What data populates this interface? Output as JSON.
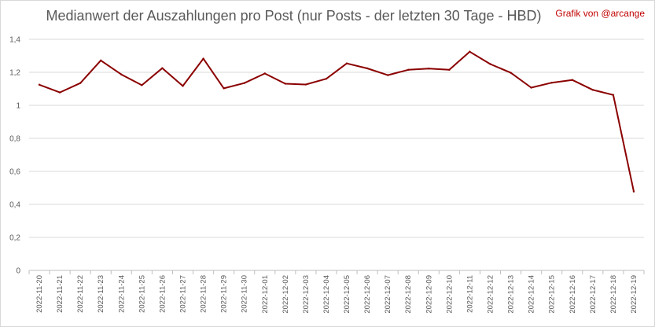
{
  "title": "Medianwert der Auszahlungen pro Post (nur Posts - der letzten 30 Tage - HBD)",
  "credit": "Grafik von @arcange",
  "chart_data": {
    "type": "line",
    "title": "Medianwert der Auszahlungen pro Post (nur Posts - der letzten 30 Tage - HBD)",
    "xlabel": "",
    "ylabel": "",
    "categories": [
      "2022-11-20",
      "2022-11-21",
      "2022-11-22",
      "2022-11-23",
      "2022-11-24",
      "2022-11-25",
      "2022-11-26",
      "2022-11-27",
      "2022-11-28",
      "2022-11-29",
      "2022-11-30",
      "2022-12-01",
      "2022-12-02",
      "2022-12-03",
      "2022-12-04",
      "2022-12-05",
      "2022-12-06",
      "2022-12-07",
      "2022-12-08",
      "2022-12-09",
      "2022-12-10",
      "2022-12-11",
      "2022-12-12",
      "2022-12-13",
      "2022-12-14",
      "2022-12-15",
      "2022-12-16",
      "2022-12-17",
      "2022-12-18",
      "2022-12-19"
    ],
    "series": [
      {
        "color": "#8b0000",
        "values": [
          1.125,
          1.078,
          1.135,
          1.272,
          1.187,
          1.122,
          1.225,
          1.117,
          1.283,
          1.103,
          1.135,
          1.193,
          1.131,
          1.126,
          1.161,
          1.254,
          1.224,
          1.183,
          1.215,
          1.223,
          1.215,
          1.325,
          1.25,
          1.197,
          1.107,
          1.137,
          1.154,
          1.094,
          1.063,
          0.478
        ]
      }
    ],
    "yticks": [
      "0",
      "0,2",
      "0,4",
      "0,6",
      "0,8",
      "1",
      "1,2",
      "1,4"
    ],
    "ylim": [
      0,
      1.4
    ],
    "grid": true,
    "legend": "none"
  }
}
